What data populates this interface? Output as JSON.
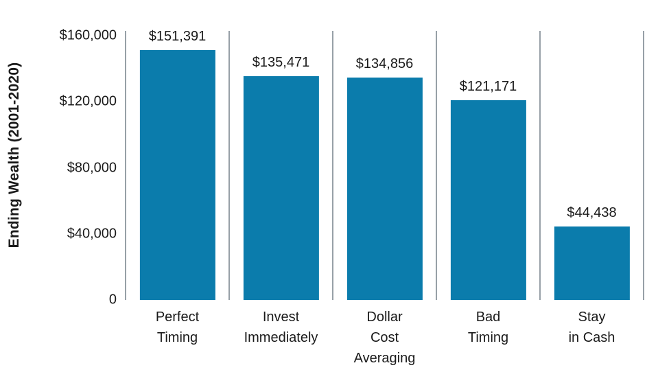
{
  "chart_data": {
    "type": "bar",
    "title": "",
    "xlabel": "",
    "ylabel": "Ending Wealth (2001-2020)",
    "categories": [
      "Perfect Timing",
      "Invest Immediately",
      "Dollar Cost Averaging",
      "Bad Timing",
      "Stay in Cash"
    ],
    "category_display_lines": [
      [
        "Perfect",
        "Timing"
      ],
      [
        "Invest",
        "Immediately"
      ],
      [
        "Dollar",
        "Cost",
        "Averaging"
      ],
      [
        "Bad",
        "Timing"
      ],
      [
        "Stay",
        "in Cash"
      ]
    ],
    "values": [
      151391,
      135471,
      134856,
      121171,
      44438
    ],
    "value_labels": [
      "$151,391",
      "$135,471",
      "$134,856",
      "$121,171",
      "$44,438"
    ],
    "yticks": [
      {
        "value": 160000,
        "label": "$160,000"
      },
      {
        "value": 120000,
        "label": "$120,000"
      },
      {
        "value": 80000,
        "label": "$80,000"
      },
      {
        "value": 40000,
        "label": "$40,000"
      },
      {
        "value": 0,
        "label": "0"
      }
    ],
    "ylim": [
      0,
      163000
    ],
    "grid": "vertical-dividers-between-categories",
    "legend": "none",
    "colors": {
      "bar": "#0b7cac",
      "divider": "#97a0a7",
      "text": "#1a1a1a"
    }
  }
}
